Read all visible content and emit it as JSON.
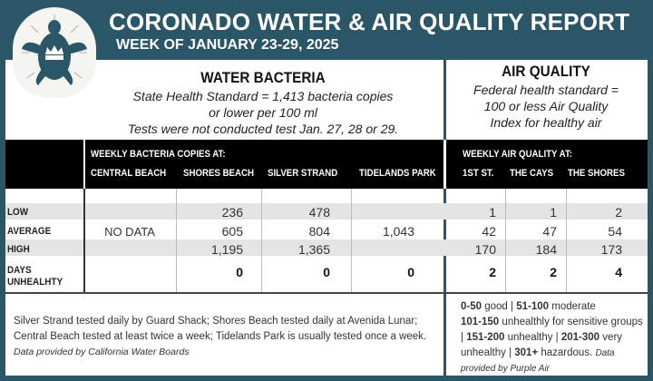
{
  "header": {
    "title": "CORONADO WATER & AIR QUALITY REPORT",
    "subtitle": "WEEK OF JANUARY 23-29, 2025",
    "logo": "turtle-crown-logo"
  },
  "water": {
    "title": "WATER BACTERIA",
    "standard_line1": "State Health Standard  = 1,413 bacteria copies",
    "standard_line2": "or lower per 100 ml",
    "note": "Tests were not conducted test Jan. 27, 28 or 29.",
    "group_label": "WEEKLY BACTERIA COPIES AT:",
    "columns": [
      "CENTRAL BEACH",
      "SHORES BEACH",
      "SILVER STRAND",
      "TIDELANDS PARK"
    ],
    "rows": {
      "low": [
        "",
        "236",
        "478",
        ""
      ],
      "average": [
        "NO DATA",
        "605",
        "804",
        "1,043"
      ],
      "high": [
        "",
        "1,195",
        "1,365",
        ""
      ],
      "days_unhealthy": [
        "",
        "0",
        "0",
        "0"
      ]
    },
    "footnote": "Silver Strand tested daily by Guard Shack; Shores Beach tested daily at Avenida Lunar; Central Beach tested at least twice a week; Tidelands Park is usually tested once a week.",
    "source": "Data provided by California Water Boards"
  },
  "air": {
    "title": "AIR QUALITY",
    "standard_line1": "Federal health standard =",
    "standard_line2": "100 or less Air Quality",
    "standard_line3": "Index for healthy air",
    "group_label": "WEEKLY AIR QUALITY AT:",
    "columns": [
      "1ST ST.",
      "THE CAYS",
      "THE SHORES"
    ],
    "rows": {
      "low": [
        "1",
        "1",
        "2"
      ],
      "average": [
        "42",
        "47",
        "54"
      ],
      "high": [
        "170",
        "184",
        "173"
      ],
      "days_unhealthy": [
        "2",
        "2",
        "4"
      ]
    },
    "legend": [
      {
        "range": "0-50",
        "label": "good"
      },
      {
        "range": "51-100",
        "label": "moderate"
      },
      {
        "range": "101-150",
        "label": "unhealthly for sensitive groups"
      },
      {
        "range": "151-200",
        "label": "unhealthy"
      },
      {
        "range": "201-300",
        "label": "very unhealthy"
      },
      {
        "range": "301+",
        "label": "hazardous."
      }
    ],
    "source": "Data provided by Purple Air"
  },
  "row_labels": {
    "low": "LOW",
    "average": "AVERAGE",
    "high": "HIGH",
    "days1": "DAYS",
    "days2": "UNHEALHTY"
  }
}
